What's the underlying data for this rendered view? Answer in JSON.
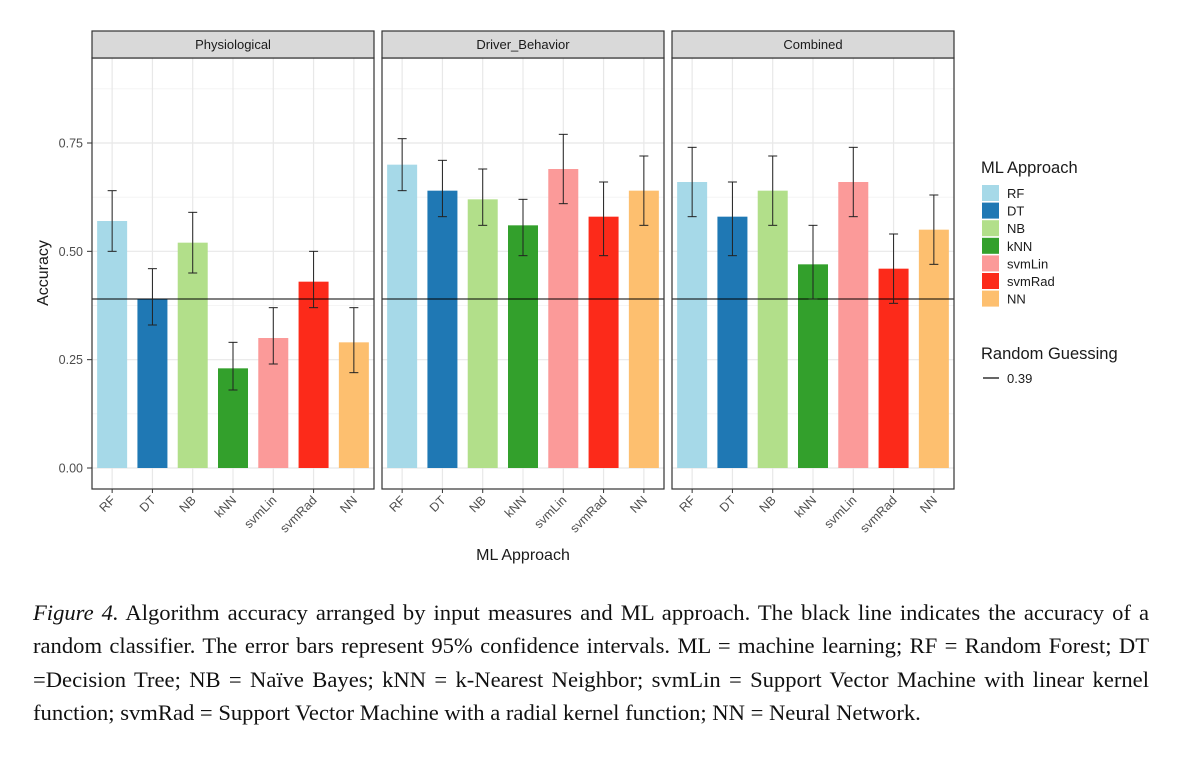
{
  "chart_data": {
    "type": "bar",
    "xlabel": "ML Approach",
    "ylabel": "Accuracy",
    "ylim": [
      0,
      0.95
    ],
    "yticks": [
      0.0,
      0.25,
      0.5,
      0.75
    ],
    "ytick_labels": [
      "0.00",
      "0.25",
      "0.50",
      "0.75"
    ],
    "grid": true,
    "categories": [
      "RF",
      "DT",
      "NB",
      "kNN",
      "svmLin",
      "svmRad",
      "NN"
    ],
    "colors": [
      "#a6d9e8",
      "#1f78b4",
      "#b2df8a",
      "#33a02c",
      "#fb9a99",
      "#fc2a1a",
      "#fdbf6f"
    ],
    "facets": [
      {
        "name": "Physiological",
        "values": [
          0.57,
          0.39,
          0.52,
          0.23,
          0.3,
          0.43,
          0.29
        ],
        "ci_low": [
          0.5,
          0.33,
          0.45,
          0.18,
          0.24,
          0.37,
          0.22
        ],
        "ci_high": [
          0.64,
          0.46,
          0.59,
          0.29,
          0.37,
          0.5,
          0.37
        ]
      },
      {
        "name": "Driver_Behavior",
        "values": [
          0.7,
          0.64,
          0.62,
          0.56,
          0.69,
          0.58,
          0.64
        ],
        "ci_low": [
          0.64,
          0.58,
          0.56,
          0.49,
          0.61,
          0.49,
          0.56
        ],
        "ci_high": [
          0.76,
          0.71,
          0.69,
          0.62,
          0.77,
          0.66,
          0.72
        ]
      },
      {
        "name": "Combined",
        "values": [
          0.66,
          0.58,
          0.64,
          0.47,
          0.66,
          0.46,
          0.55
        ],
        "ci_low": [
          0.58,
          0.49,
          0.56,
          0.39,
          0.58,
          0.38,
          0.47
        ],
        "ci_high": [
          0.74,
          0.66,
          0.72,
          0.56,
          0.74,
          0.54,
          0.63
        ]
      }
    ],
    "reference_line": {
      "value": 0.39,
      "legend_title": "Random Guessing",
      "label": "0.39"
    },
    "legend": {
      "title": "ML Approach",
      "placement": "right",
      "entries": [
        "RF",
        "DT",
        "NB",
        "kNN",
        "svmLin",
        "svmRad",
        "NN"
      ]
    }
  },
  "caption": {
    "figure_label": "Figure 4.",
    "text": " Algorithm accuracy arranged by input measures and ML approach. The black line indicates the accuracy of a random classifier. The error bars represent 95% confidence intervals. ML = machine learning; RF = Random Forest; DT =Decision Tree; NB = Naïve Bayes; kNN = k-Nearest Neighbor; svmLin = Support Vector Machine with linear kernel function; svmRad = Support Vector Machine with a radial kernel function; NN = Neural Network."
  }
}
